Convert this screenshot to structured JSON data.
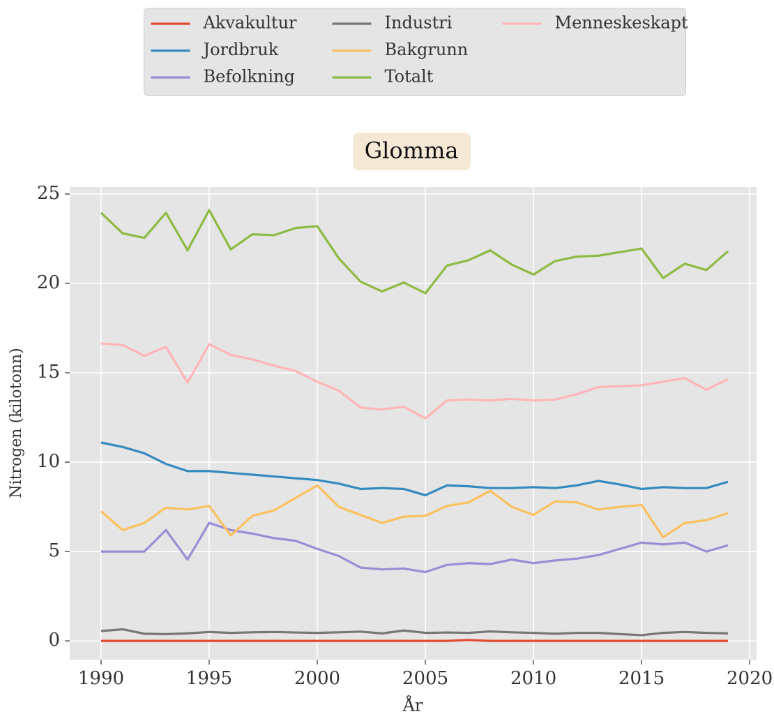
{
  "chart_data": {
    "type": "line",
    "title": "Glomma",
    "x_label": "År",
    "y_label": "Nitrogen (kilotonn)",
    "x": [
      1990,
      1991,
      1992,
      1993,
      1994,
      1995,
      1996,
      1997,
      1998,
      1999,
      2000,
      2001,
      2002,
      2003,
      2004,
      2005,
      2006,
      2007,
      2008,
      2009,
      2010,
      2011,
      2012,
      2013,
      2014,
      2015,
      2016,
      2017,
      2018,
      2019
    ],
    "series": [
      {
        "name": "Akvakultur",
        "color": "#E24A33",
        "values": [
          0,
          0,
          0,
          0,
          0,
          0,
          0,
          0,
          0,
          0,
          0,
          0,
          0,
          0,
          0,
          0,
          0,
          0.05,
          0,
          0,
          0,
          0,
          0,
          0,
          0,
          0,
          0,
          0,
          0,
          0
        ]
      },
      {
        "name": "Jordbruk",
        "color": "#348ABD",
        "values": [
          11.1,
          10.85,
          10.5,
          9.9,
          9.5,
          9.5,
          9.4,
          9.3,
          9.2,
          9.1,
          9.0,
          8.8,
          8.5,
          8.55,
          8.5,
          8.15,
          8.7,
          8.65,
          8.55,
          8.55,
          8.6,
          8.55,
          8.7,
          8.95,
          8.75,
          8.5,
          8.6,
          8.55,
          8.55,
          8.9
        ]
      },
      {
        "name": "Befolkning",
        "color": "#988ED5",
        "values": [
          5.0,
          5.0,
          5.0,
          6.2,
          4.55,
          6.6,
          6.2,
          6.0,
          5.75,
          5.6,
          5.15,
          4.75,
          4.1,
          4.0,
          4.05,
          3.85,
          4.25,
          4.35,
          4.3,
          4.55,
          4.35,
          4.5,
          4.6,
          4.8,
          5.15,
          5.5,
          5.4,
          5.5,
          5.0,
          5.35
        ]
      },
      {
        "name": "Industri",
        "color": "#777777",
        "values": [
          0.55,
          0.65,
          0.4,
          0.38,
          0.42,
          0.5,
          0.45,
          0.48,
          0.5,
          0.47,
          0.45,
          0.48,
          0.52,
          0.42,
          0.58,
          0.45,
          0.47,
          0.45,
          0.53,
          0.48,
          0.45,
          0.4,
          0.45,
          0.45,
          0.38,
          0.32,
          0.45,
          0.5,
          0.45,
          0.42
        ]
      },
      {
        "name": "Bakgrunn",
        "color": "#FBC15E",
        "values": [
          7.25,
          6.2,
          6.6,
          7.45,
          7.35,
          7.55,
          5.9,
          7.0,
          7.3,
          8.0,
          8.7,
          7.5,
          7.05,
          6.6,
          6.95,
          7.0,
          7.55,
          7.75,
          8.4,
          7.5,
          7.05,
          7.8,
          7.75,
          7.35,
          7.5,
          7.6,
          5.8,
          6.6,
          6.75,
          7.15
        ]
      },
      {
        "name": "Totalt",
        "color": "#8EBA42",
        "values": [
          23.95,
          22.8,
          22.55,
          23.95,
          21.85,
          24.1,
          21.9,
          22.75,
          22.7,
          23.1,
          23.2,
          21.4,
          20.1,
          19.55,
          20.05,
          19.45,
          21.0,
          21.3,
          21.85,
          21.05,
          20.5,
          21.25,
          21.5,
          21.55,
          21.75,
          21.95,
          20.3,
          21.1,
          20.75,
          21.8
        ]
      },
      {
        "name": "Menneskeskapt",
        "color": "#FFB5B8",
        "values": [
          16.65,
          16.55,
          15.95,
          16.45,
          14.45,
          16.6,
          16.0,
          15.75,
          15.4,
          15.1,
          14.5,
          14.0,
          13.05,
          12.95,
          13.1,
          12.45,
          13.45,
          13.5,
          13.45,
          13.55,
          13.45,
          13.5,
          13.8,
          14.2,
          14.25,
          14.3,
          14.5,
          14.7,
          14.05,
          14.65
        ]
      }
    ],
    "xlim": [
      1988.55,
      2020.32
    ],
    "ylim": [
      -1.05,
      25.39
    ],
    "xticks": [
      1990,
      1995,
      2000,
      2005,
      2010,
      2015,
      2020
    ],
    "yticks": [
      0,
      5,
      10,
      15,
      20,
      25
    ],
    "grid": true,
    "legend": "upper center",
    "legend_columns": 3
  }
}
